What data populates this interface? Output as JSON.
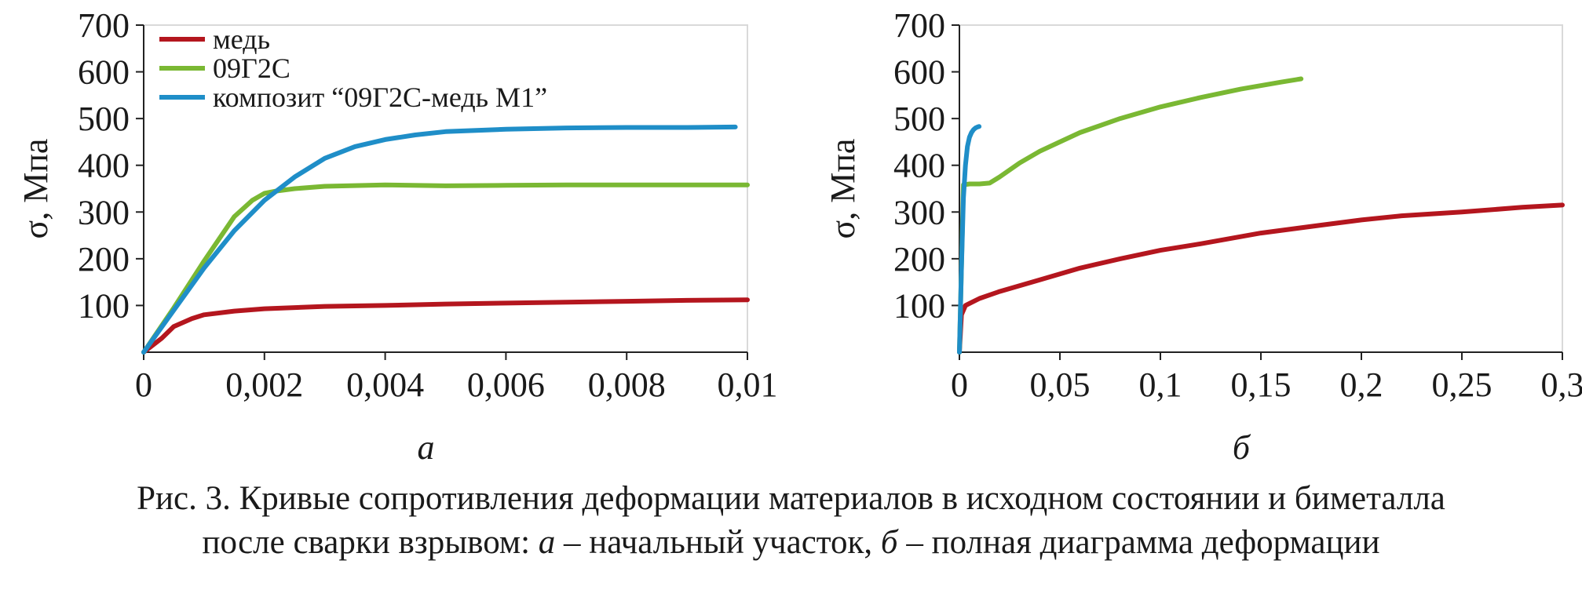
{
  "caption": {
    "line1": "Рис. 3. Кривые сопротивления деформации материалов в исходном состоянии и биметалла",
    "line2_a": "после сварки взрывом: ",
    "line2_b": "а",
    "line2_c": " – начальный участок, ",
    "line2_d": "б",
    "line2_e": " – полная диаграмма деформации"
  },
  "colors": {
    "copper": "#b4161e",
    "steel": "#7ab833",
    "composite": "#1f8ec8",
    "axis": "#222222",
    "grid": "#d9d9d9"
  },
  "chart_data": [
    {
      "type": "line",
      "panel_label": "а",
      "xlabel": "",
      "ylabel": "σ, Мпа",
      "xlim": [
        0,
        0.01
      ],
      "ylim": [
        0,
        700
      ],
      "x_ticks": [
        0,
        0.002,
        0.004,
        0.006,
        0.008,
        0.01
      ],
      "x_tick_labels": [
        "0",
        "0,002",
        "0,004",
        "0,006",
        "0,008",
        "0,01"
      ],
      "y_ticks": [
        100,
        200,
        300,
        400,
        500,
        600,
        700
      ],
      "y_tick_labels": [
        "100",
        "200",
        "300",
        "400",
        "500",
        "600",
        "700"
      ],
      "legend": {
        "placement": "top-left",
        "entries": [
          "медь",
          "09Г2С",
          "композит “09Г2С-медь М1”"
        ]
      },
      "series": [
        {
          "name": "медь",
          "color": "#b4161e",
          "x": [
            0,
            0.0003,
            0.0005,
            0.0008,
            0.001,
            0.0015,
            0.002,
            0.003,
            0.004,
            0.005,
            0.006,
            0.007,
            0.008,
            0.009,
            0.01
          ],
          "y": [
            0,
            30,
            55,
            72,
            80,
            88,
            93,
            98,
            100,
            103,
            105,
            107,
            109,
            111,
            112
          ]
        },
        {
          "name": "09Г2С",
          "color": "#7ab833",
          "x": [
            0,
            0.0005,
            0.001,
            0.0015,
            0.0018,
            0.002,
            0.0022,
            0.0025,
            0.003,
            0.004,
            0.005,
            0.006,
            0.007,
            0.008,
            0.009,
            0.01
          ],
          "y": [
            0,
            95,
            195,
            290,
            325,
            340,
            345,
            350,
            355,
            358,
            356,
            357,
            358,
            358,
            358,
            358
          ]
        },
        {
          "name": "композит “09Г2С-медь М1”",
          "color": "#1f8ec8",
          "x": [
            0,
            0.0005,
            0.001,
            0.0015,
            0.002,
            0.0025,
            0.003,
            0.0035,
            0.004,
            0.0045,
            0.005,
            0.006,
            0.007,
            0.008,
            0.009,
            0.0098
          ],
          "y": [
            0,
            90,
            180,
            260,
            325,
            375,
            415,
            440,
            455,
            465,
            472,
            477,
            480,
            481,
            481,
            482
          ]
        }
      ]
    },
    {
      "type": "line",
      "panel_label": "б",
      "xlabel": "",
      "ylabel": "σ, Мпа",
      "xlim": [
        0,
        0.3
      ],
      "ylim": [
        0,
        700
      ],
      "x_ticks": [
        0,
        0.05,
        0.1,
        0.15,
        0.2,
        0.25,
        0.3
      ],
      "x_tick_labels": [
        "0",
        "0,05",
        "0,1",
        "0,15",
        "0,2",
        "0,25",
        "0,3"
      ],
      "y_ticks": [
        100,
        200,
        300,
        400,
        500,
        600,
        700
      ],
      "y_tick_labels": [
        "100",
        "200",
        "300",
        "400",
        "500",
        "600",
        "700"
      ],
      "series": [
        {
          "name": "медь",
          "color": "#b4161e",
          "x": [
            0,
            0.001,
            0.003,
            0.01,
            0.02,
            0.04,
            0.06,
            0.08,
            0.1,
            0.12,
            0.15,
            0.18,
            0.2,
            0.22,
            0.25,
            0.28,
            0.3
          ],
          "y": [
            0,
            80,
            100,
            115,
            130,
            155,
            180,
            200,
            218,
            232,
            255,
            272,
            283,
            292,
            300,
            310,
            315
          ]
        },
        {
          "name": "09Г2С",
          "color": "#7ab833",
          "x": [
            0,
            0.002,
            0.005,
            0.01,
            0.015,
            0.02,
            0.03,
            0.04,
            0.05,
            0.06,
            0.08,
            0.1,
            0.12,
            0.14,
            0.16,
            0.17
          ],
          "y": [
            0,
            358,
            360,
            360,
            362,
            375,
            405,
            430,
            450,
            470,
            500,
            525,
            545,
            563,
            578,
            585
          ]
        },
        {
          "name": "композит “09Г2С-медь М1”",
          "color": "#1f8ec8",
          "x": [
            0,
            0.001,
            0.002,
            0.003,
            0.004,
            0.005,
            0.006,
            0.007,
            0.008,
            0.009,
            0.0098
          ],
          "y": [
            0,
            180,
            330,
            400,
            440,
            460,
            470,
            476,
            480,
            482,
            483
          ]
        }
      ]
    }
  ]
}
